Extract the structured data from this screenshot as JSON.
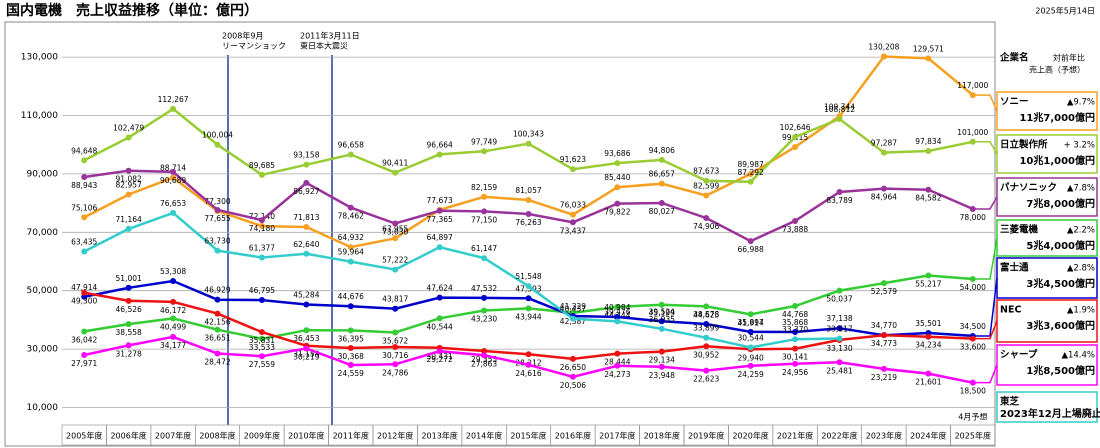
{
  "chart_data": {
    "type": "line",
    "title": "国内電機　売上収益推移（単位：億円）",
    "date": "2025年5月14日",
    "categories": [
      "2005年度",
      "2006年度",
      "2007年度",
      "2008年度",
      "2009年度",
      "2010年度",
      "2011年度",
      "2012年度",
      "2013年度",
      "2014年度",
      "2015年度",
      "2016年度",
      "2017年度",
      "2018年度",
      "2019年度",
      "2020年度",
      "2021年度",
      "2022年度",
      "2023年度",
      "2024年度",
      "2025年度"
    ],
    "forecast_note": "4月予想",
    "ylim": [
      4000,
      141000
    ],
    "yticks": [
      {
        "value": 10000,
        "label": "10,000"
      },
      {
        "value": 30000,
        "label": "30,000"
      },
      {
        "value": 50000,
        "label": "50,000"
      },
      {
        "value": 70000,
        "label": "70,000"
      },
      {
        "value": 90000,
        "label": "90,000"
      },
      {
        "value": 110000,
        "label": "110,000"
      },
      {
        "value": 130000,
        "label": "130,000"
      }
    ],
    "grid": true,
    "annotations": [
      {
        "date": "2008年9月",
        "text": "リーマンショック"
      },
      {
        "date": "2011年3月11日",
        "text": "東日本大震災"
      }
    ],
    "legend_title": "企業名",
    "legend_header": [
      "対前年比",
      "売上高（予想）"
    ],
    "series": [
      {
        "name": "ソニー",
        "color": "#f5a020",
        "change": "▲9.7%",
        "forecast": "11兆7,000億円",
        "values": [
          75106,
          82957,
          88714,
          77300,
          72140,
          71813,
          64932,
          67955,
          77673,
          82159,
          81057,
          76033,
          85440,
          86657,
          82599,
          89987,
          99215,
          109744,
          130208,
          129571,
          117000
        ],
        "value_labels": [
          "75,106",
          "82,957",
          "88,714",
          "77,300",
          "72,140",
          "71,813",
          "64,932",
          "67,955",
          "77,673",
          "82,159",
          "81,057",
          "76,033",
          "85,440",
          "86,657",
          "82,599",
          "89,987",
          "99,215",
          "109,744",
          "130,208",
          "129,571",
          "117,000"
        ]
      },
      {
        "name": "日立製作所",
        "color": "#99cc33",
        "change": "+ 3.2%",
        "forecast": "10兆1,000億円",
        "values": [
          94648,
          102479,
          112267,
          100004,
          89685,
          93158,
          96658,
          90411,
          96664,
          97749,
          100343,
          91623,
          93686,
          94806,
          87673,
          87292,
          102646,
          108812,
          97287,
          97834,
          101000
        ],
        "value_labels": [
          "94,648",
          "102,479",
          "112,267",
          "100,004",
          "89,685",
          "93,158",
          "96,658",
          "90,411",
          "96,664",
          "97,749",
          "100,343",
          "91,623",
          "93,686",
          "94,806",
          "87,673",
          "87,292",
          "102,646",
          "108,812",
          "97,287",
          "97,834",
          "101,000"
        ]
      },
      {
        "name": "パナソニック",
        "color": "#993399",
        "change": "▲7.8%",
        "forecast": "7兆8,000億円",
        "values": [
          88943,
          91082,
          90689,
          77655,
          74180,
          86927,
          78462,
          73030,
          77365,
          77150,
          76263,
          73437,
          79822,
          80027,
          74906,
          66988,
          73888,
          83789,
          84964,
          84582,
          78000
        ],
        "value_labels": [
          "88,943",
          "91,082",
          "90,689",
          "77,655",
          "74,180",
          "86,927",
          "78,462",
          "73,030",
          "77,365",
          "77,150",
          "76,263",
          "73,437",
          "79,822",
          "80,027",
          "74,906",
          "66,988",
          "73,888",
          "83,789",
          "84,964",
          "84,582",
          "78,000"
        ]
      },
      {
        "name": "三菱電機",
        "color": "#33cc33",
        "change": "▲2.2%",
        "forecast": "5兆4,000億円",
        "values": [
          36042,
          38558,
          40499,
          36651,
          33533,
          36453,
          36395,
          35672,
          40544,
          43230,
          43944,
          42387,
          44444,
          45199,
          44625,
          41914,
          44768,
          50037,
          52579,
          55217,
          54000
        ],
        "value_labels": [
          "36,042",
          "38,558",
          "40,499",
          "36,651",
          "33,533",
          "36,453",
          "36,395",
          "35,672",
          "40,544",
          "43,230",
          "43,944",
          "42,387",
          "44,444",
          "45,199",
          "44,625",
          "41,914",
          "44,768",
          "50,037",
          "52,579",
          "55,217",
          "54,000"
        ]
      },
      {
        "name": "富士通",
        "color": "#0000cc",
        "change": "▲2.8%",
        "forecast": "3兆4,500億円",
        "values": [
          47914,
          51001,
          53308,
          46929,
          46795,
          45284,
          44676,
          43817,
          47624,
          47532,
          47393,
          41329,
          40984,
          39524,
          38578,
          35897,
          35868,
          37138,
          34770,
          35501,
          34500
        ],
        "value_labels": [
          "47,914",
          "51,001",
          "53,308",
          "46,929",
          "46,795",
          "45,284",
          "44,676",
          "43,817",
          "47,624",
          "47,532",
          "47,393",
          "41,329",
          "40,984",
          "39,524",
          "38,578",
          "35,897",
          "35,868",
          "37,138",
          "34,770",
          "35,501",
          "34,500"
        ]
      },
      {
        "name": "NEC",
        "color": "#ee1111",
        "change": "▲1.9%",
        "forecast": "3兆3,600億円",
        "values": [
          49300,
          46526,
          46172,
          42156,
          35831,
          31154,
          30368,
          30716,
          30431,
          29355,
          28212,
          26650,
          28444,
          29134,
          30952,
          29940,
          30141,
          33130,
          34773,
          34234,
          33600
        ],
        "value_labels": [
          "49,300",
          "46,526",
          "46,172",
          "42,156",
          "35,831",
          "31,154",
          "30,368",
          "30,716",
          "30,431",
          "29,355",
          "28,212",
          "26,650",
          "28,444",
          "29,134",
          "30,952",
          "29,940",
          "30,141",
          "33,130",
          "34,773",
          "34,234",
          "33,600"
        ]
      },
      {
        "name": "シャープ",
        "color": "#ff00ff",
        "change": "▲14.4%",
        "forecast": "1兆8,500億円",
        "values": [
          27971,
          31278,
          34177,
          28472,
          27559,
          30219,
          24559,
          24786,
          29272,
          27863,
          24616,
          20506,
          24273,
          23948,
          22623,
          24259,
          24956,
          25481,
          23219,
          21601,
          18500
        ],
        "value_labels": [
          "27,971",
          "31,278",
          "34,177",
          "28,472",
          "27,559",
          "30,219",
          "24,559",
          "24,786",
          "29,272",
          "27,863",
          "24,616",
          "20,506",
          "24,273",
          "23,948",
          "22,623",
          "24,259",
          "24,956",
          "25,481",
          "23,219",
          "21,601",
          "18,500"
        ]
      },
      {
        "name": "東芝",
        "color": "#33cccc",
        "note": "2023年12月上場廃止",
        "values": [
          63435,
          71164,
          76653,
          63730,
          61377,
          62640,
          59964,
          57222,
          64897,
          61147,
          51548,
          40437,
          39476,
          36935,
          33899,
          30544,
          33370,
          33617,
          null,
          null,
          null
        ],
        "value_labels": [
          "63,435",
          "71,164",
          "76,653",
          "63,730",
          "61,377",
          "62,640",
          "59,964",
          "57,222",
          "64,897",
          "61,147",
          "51,548",
          "40,437",
          "39,476",
          "36,935",
          "33,899",
          "30,544",
          "33,370",
          "33,617",
          null,
          null,
          null
        ]
      }
    ]
  }
}
